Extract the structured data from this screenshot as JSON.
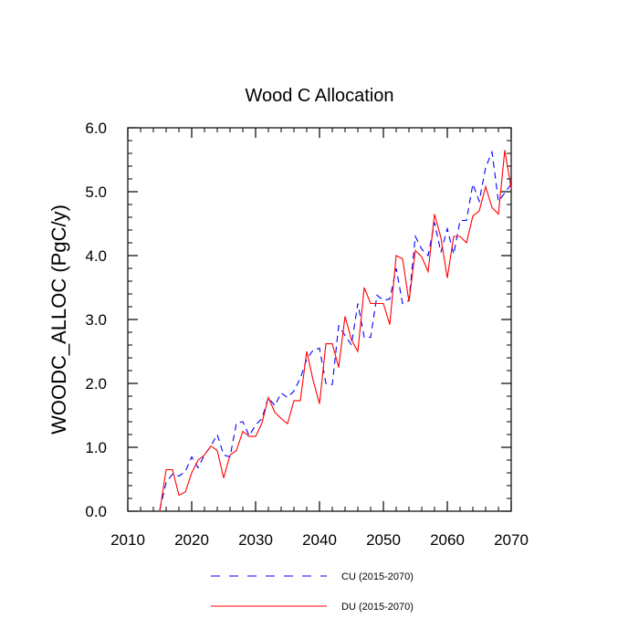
{
  "chart_data": {
    "type": "line",
    "title": "Wood C Allocation",
    "xlabel": "",
    "ylabel": "WOODC_ALLOC  (PgC/y)",
    "xlim": [
      2010,
      2070
    ],
    "ylim": [
      0,
      6
    ],
    "xticks": [
      2010,
      2020,
      2030,
      2040,
      2050,
      2060,
      2070
    ],
    "yticks": [
      0,
      1,
      2,
      3,
      4,
      5,
      6
    ],
    "xtick_labels": [
      "2010",
      "2020",
      "2030",
      "2040",
      "2050",
      "2060",
      "2070"
    ],
    "ytick_labels": [
      "0.0",
      "1.0",
      "2.0",
      "3.0",
      "4.0",
      "5.0",
      "6.0"
    ],
    "grid": false,
    "legend_position": "bottom-center",
    "series": [
      {
        "name": "CU (2015-2070)",
        "color": "#0000ff",
        "style": "dashed",
        "x": [
          2015,
          2016,
          2017,
          2018,
          2019,
          2020,
          2021,
          2022,
          2023,
          2024,
          2025,
          2026,
          2027,
          2028,
          2029,
          2030,
          2031,
          2032,
          2033,
          2034,
          2035,
          2036,
          2037,
          2038,
          2039,
          2040,
          2041,
          2042,
          2043,
          2044,
          2045,
          2046,
          2047,
          2048,
          2049,
          2050,
          2051,
          2052,
          2053,
          2054,
          2055,
          2056,
          2057,
          2058,
          2059,
          2060,
          2061,
          2062,
          2063,
          2064,
          2065,
          2066,
          2067,
          2068,
          2069,
          2070
        ],
        "values": [
          0.02,
          0.45,
          0.58,
          0.55,
          0.62,
          0.85,
          0.68,
          0.88,
          1.02,
          1.2,
          0.88,
          0.85,
          1.38,
          1.4,
          1.18,
          1.35,
          1.45,
          1.78,
          1.65,
          1.85,
          1.78,
          1.88,
          2.08,
          2.38,
          2.52,
          2.55,
          2.0,
          1.98,
          2.9,
          2.75,
          2.6,
          3.25,
          2.72,
          2.72,
          3.38,
          3.3,
          3.32,
          3.8,
          3.25,
          3.3,
          4.3,
          4.1,
          4.0,
          4.52,
          4.05,
          4.42,
          4.02,
          4.55,
          4.55,
          5.12,
          4.85,
          5.38,
          5.62,
          4.85,
          4.98,
          5.12
        ]
      },
      {
        "name": "DU (2015-2070)",
        "color": "#ff0000",
        "style": "solid",
        "x": [
          2015,
          2016,
          2017,
          2018,
          2019,
          2020,
          2021,
          2022,
          2023,
          2024,
          2025,
          2026,
          2027,
          2028,
          2029,
          2030,
          2031,
          2032,
          2033,
          2034,
          2035,
          2036,
          2037,
          2038,
          2039,
          2040,
          2041,
          2042,
          2043,
          2044,
          2045,
          2046,
          2047,
          2048,
          2049,
          2050,
          2051,
          2052,
          2053,
          2054,
          2055,
          2056,
          2057,
          2058,
          2059,
          2060,
          2061,
          2062,
          2063,
          2064,
          2065,
          2066,
          2067,
          2068,
          2069,
          2070
        ],
        "values": [
          0.0,
          0.65,
          0.65,
          0.25,
          0.3,
          0.6,
          0.8,
          0.88,
          1.02,
          0.95,
          0.52,
          0.88,
          0.95,
          1.25,
          1.17,
          1.17,
          1.38,
          1.78,
          1.55,
          1.45,
          1.37,
          1.73,
          1.73,
          2.5,
          2.05,
          1.68,
          2.62,
          2.62,
          2.25,
          3.05,
          2.68,
          2.5,
          3.5,
          3.25,
          3.25,
          3.25,
          2.92,
          4.0,
          3.95,
          3.28,
          4.08,
          3.98,
          3.75,
          4.65,
          4.28,
          3.65,
          4.3,
          4.3,
          4.2,
          4.62,
          4.7,
          5.08,
          4.75,
          4.65,
          5.65,
          5.05
        ]
      }
    ]
  }
}
